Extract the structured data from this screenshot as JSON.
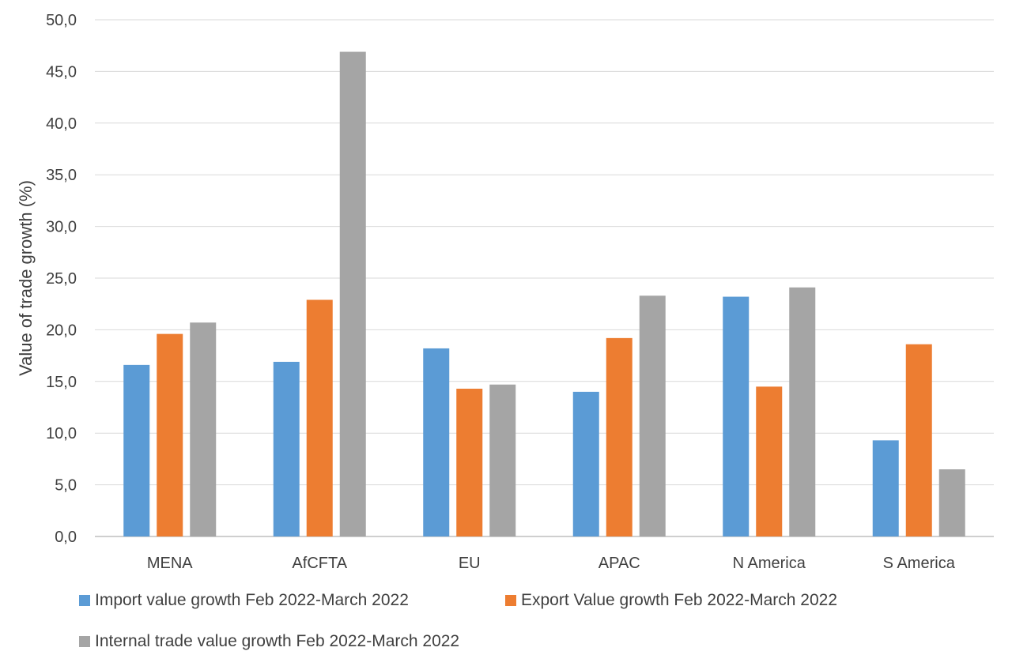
{
  "chart_data": {
    "type": "bar",
    "title": "",
    "xlabel": "",
    "ylabel": "Value of trade growth (%)",
    "ylim": [
      0,
      50
    ],
    "ytick_step": 5,
    "ytick_labels": [
      "0,0",
      "5,0",
      "10,0",
      "15,0",
      "20,0",
      "25,0",
      "30,0",
      "35,0",
      "40,0",
      "45,0",
      "50,0"
    ],
    "grid": true,
    "legend_position": "bottom",
    "categories": [
      "MENA",
      "AfCFTA",
      "EU",
      "APAC",
      "N America",
      "S America"
    ],
    "series": [
      {
        "name": "Import value growth Feb 2022-March 2022",
        "color": "#5b9bd5",
        "values": [
          16.6,
          16.9,
          18.2,
          14.0,
          23.2,
          9.3
        ]
      },
      {
        "name": "Export Value growth Feb 2022-March 2022",
        "color": "#ed7d31",
        "values": [
          19.6,
          22.9,
          14.3,
          19.2,
          14.5,
          18.6
        ]
      },
      {
        "name": "Internal trade value growth Feb 2022-March 2022",
        "color": "#a5a5a5",
        "values": [
          20.7,
          46.9,
          14.7,
          23.3,
          24.1,
          6.5
        ]
      }
    ]
  }
}
